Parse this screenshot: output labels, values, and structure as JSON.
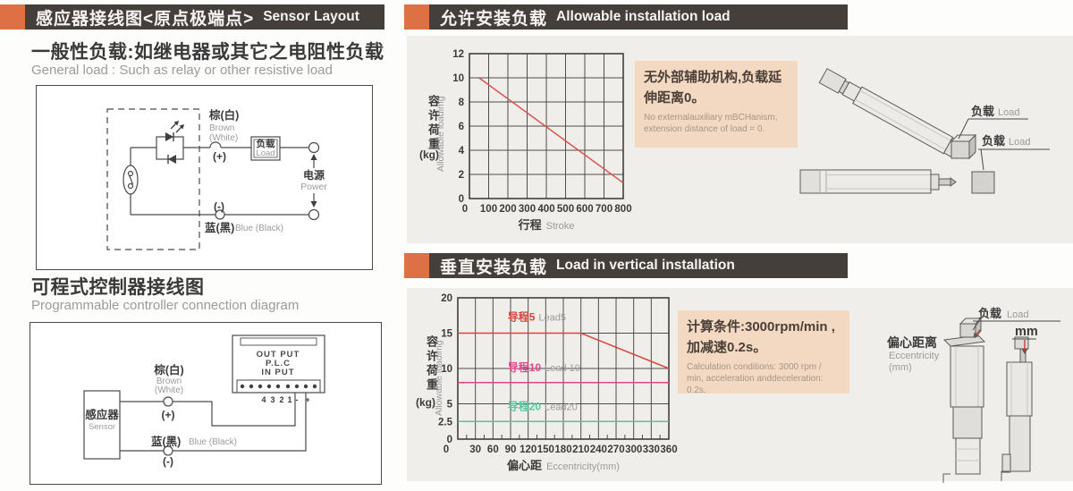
{
  "colors": {
    "accent_orange": "#dd7044",
    "bar_dark": "#453f3b",
    "panel_gray": "#f0eeeb",
    "note_peach": "#f4d9c2",
    "grid": "#4d4d4d",
    "text_dark": "#3b3b3b",
    "text_gray": "#9b9b9b",
    "line_red": "#d9534a",
    "line_magenta": "#e8418c",
    "line_green": "#52c7a0"
  },
  "left": {
    "header": {
      "cn": "感应器接线图<原点极端点>",
      "en": "Sensor Layout"
    },
    "section1": {
      "title_cn": "一般性负载:如继电器或其它之电阻性负载",
      "title_en": "General load : Such as relay or other resistive load",
      "labels": {
        "brown_cn": "棕(白)",
        "brown_en1": "Brown",
        "brown_en2": "(White)",
        "plus": "(+)",
        "minus": "(-)",
        "load_cn": "负载",
        "load_en": "Load",
        "power_cn": "电源",
        "power_en": "Power",
        "blue_cn": "蓝(黑)",
        "blue_en": "Blue (Black)"
      }
    },
    "section2": {
      "title_cn": "可程式控制器接线图",
      "title_en": "Programmable controller connection diagram",
      "labels": {
        "sensor_cn": "感应器",
        "sensor_en": "Sensor",
        "plc1": "OUT PUT",
        "plc2": "P.L.C",
        "plc3": "IN PUT",
        "t4": "4",
        "t3": "3",
        "t2": "2",
        "t1": "1",
        "tm": "-",
        "tp": "+",
        "brown_cn": "棕(白)",
        "brown_en1": "Brown",
        "brown_en2": "(White)",
        "plus": "(+)",
        "blue_cn": "蓝(黑)",
        "blue_en": "Blue (Black)",
        "minus": "(-)"
      }
    }
  },
  "right": {
    "header1": {
      "cn": "允许安装负载",
      "en": "Allowable installation load"
    },
    "header2": {
      "cn": "垂直安装负载",
      "en": "Load in vertical installation"
    },
    "note1": {
      "cn": "无外部辅助机构,负载延伸距离0。",
      "en": "No externalauxiliary mBCHanism, extension distance of load = 0."
    },
    "note2": {
      "cn": "计算条件:3000rpm/min , 加减速0.2s。",
      "en": "Calculation conditions: 3000 rpm / min, acceleration anddeceleration: 0.2s."
    },
    "img1": {
      "load1_cn": "负载",
      "load1_en": "Load",
      "load2_cn": "负载",
      "load2_en": "Load"
    },
    "img2": {
      "load_cn": "负载",
      "load_en": "Load",
      "mm": "mm",
      "ecc_cn": "偏心距离",
      "ecc_en": "Eccentricity",
      "ecc_unit": "(mm)"
    }
  },
  "chart_data": [
    {
      "type": "line",
      "title": "允许安装负载 Allowable installation load",
      "xlabel_cn": "行程",
      "xlabel_en": "Stroke",
      "ylabel_cn": "容许荷重",
      "ylabel_unit": "(kg)",
      "ylabel_en": "Allowable loadimg",
      "xlim": [
        0,
        800
      ],
      "ylim": [
        0,
        12
      ],
      "xticks": [
        0,
        100,
        200,
        300,
        400,
        500,
        600,
        700,
        800
      ],
      "yticks": [
        0,
        2,
        4,
        6,
        8,
        10,
        12
      ],
      "grid": true,
      "legend_position": "none",
      "series": [
        {
          "name_cn": "容许荷重",
          "name_en": "allowable load",
          "color": "#d9534a",
          "points": [
            [
              50,
              10
            ],
            [
              800,
              1.3
            ]
          ]
        }
      ]
    },
    {
      "type": "line",
      "title": "垂直安装负载 Load in vertical installation",
      "xlabel_cn": "偏心距",
      "xlabel_en": "Eccentricity(mm)",
      "ylabel_cn": "容许荷重",
      "ylabel_unit": "(kg)",
      "ylabel_en": "Allowable loadimg",
      "xlim": [
        0,
        360
      ],
      "ylim": [
        0,
        20
      ],
      "xticks": [
        0,
        30,
        60,
        90,
        120,
        150,
        180,
        210,
        240,
        270,
        300,
        330,
        360
      ],
      "x_minor_step": 15,
      "yticks": [
        0,
        2.5,
        5,
        10,
        15,
        20
      ],
      "grid": true,
      "legend_position": "inline",
      "series": [
        {
          "name_cn": "导程5",
          "name_en": "Lead5",
          "color": "#d9453c",
          "points": [
            [
              0,
              15
            ],
            [
              210,
              15
            ],
            [
              360,
              10
            ]
          ],
          "label_pos": [
            85,
            16.8
          ]
        },
        {
          "name_cn": "导程10",
          "name_en": "Lead 10",
          "color": "#e8418c",
          "points": [
            [
              0,
              8
            ],
            [
              360,
              8
            ]
          ],
          "label_pos": [
            85,
            9.6
          ]
        },
        {
          "name_cn": "导程20",
          "name_en": "Lead20",
          "color": "#52c7a0",
          "points": [
            [
              0,
              2.5
            ],
            [
              360,
              2.5
            ]
          ],
          "label_pos": [
            85,
            4.1
          ]
        }
      ]
    }
  ]
}
